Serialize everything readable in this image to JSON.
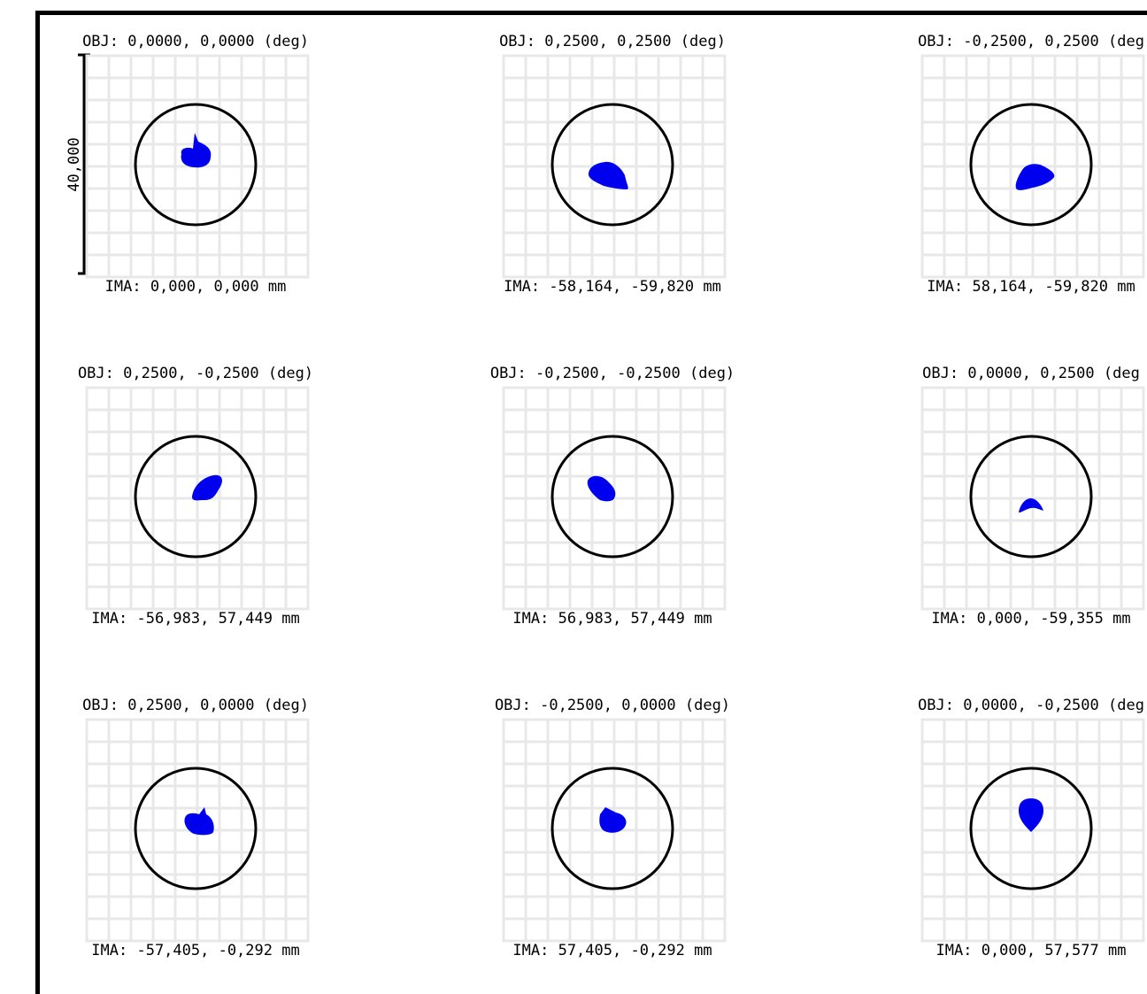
{
  "diagram": {
    "scale_label": "40,000",
    "cells": [
      {
        "obj": "OBJ: 0,0000, 0,0000 (deg)",
        "ima": "IMA: 0,000, 0,000 mm",
        "spot_shape": "round-with-top-tip"
      },
      {
        "obj": "OBJ: 0,2500, 0,2500 (deg)",
        "ima": "IMA: -58,164, -59,820 mm",
        "spot_shape": "wide-lower-right"
      },
      {
        "obj": "OBJ: -0,2500, 0,2500 (deg",
        "ima": "IMA: 58,164, -59,820 mm",
        "spot_shape": "wide-lower-left"
      },
      {
        "obj": "OBJ: 0,2500, -0,2500 (deg)",
        "ima": "IMA: -56,983, 57,449 mm",
        "spot_shape": "tilted-upper-right"
      },
      {
        "obj": "OBJ: -0,2500, -0,2500 (deg)",
        "ima": "IMA: 56,983, 57,449 mm",
        "spot_shape": "tilted-upper-left"
      },
      {
        "obj": "OBJ: 0,0000, 0,2500 (deg",
        "ima": "IMA: 0,000, -59,355 mm",
        "spot_shape": "small-arch"
      },
      {
        "obj": "OBJ: 0,2500, 0,0000 (deg)",
        "ima": "IMA: -57,405, -0,292 mm",
        "spot_shape": "round-tip-upper-right"
      },
      {
        "obj": "OBJ: -0,2500, 0,0000 (deg)",
        "ima": "IMA: 57,405, -0,292 mm",
        "spot_shape": "round-tip-upper-left"
      },
      {
        "obj": "OBJ: 0,0000, -0,2500 (deg",
        "ima": "IMA: 0,000, 57,577 mm",
        "spot_shape": "teardrop-down"
      }
    ],
    "colors": {
      "spot": "#0000ee",
      "grid": "#e8e8e8",
      "circle": "#000000",
      "text": "#000000"
    }
  }
}
